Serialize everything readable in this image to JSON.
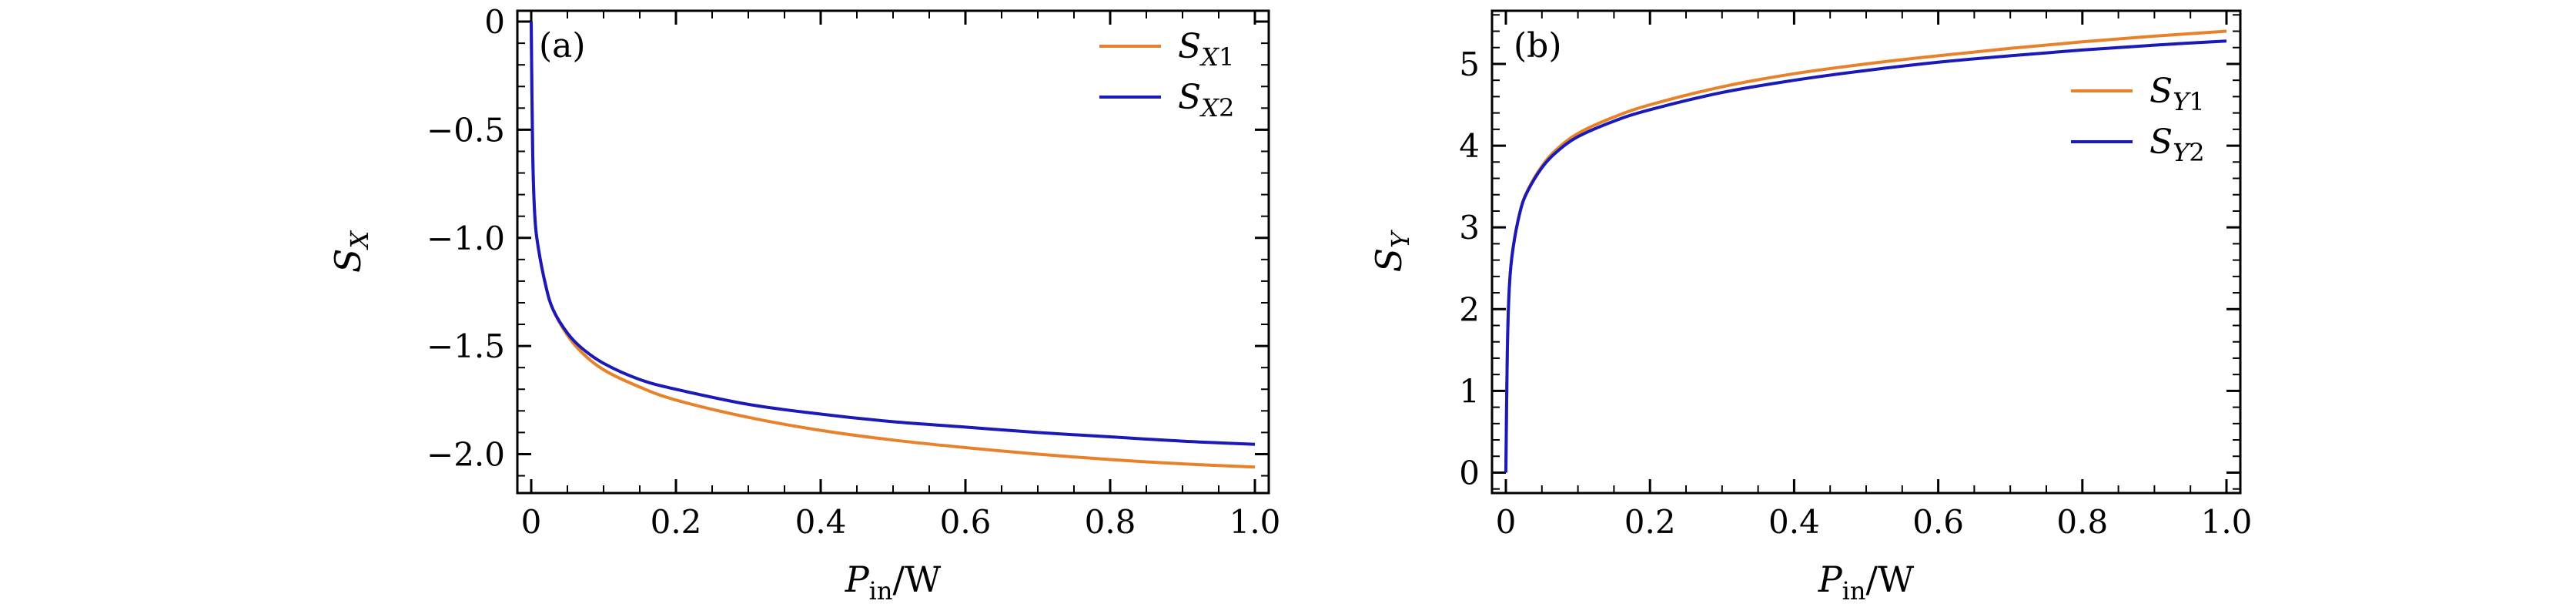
{
  "chart_data": [
    {
      "type": "line",
      "panel_label": "(a)",
      "xlabel": {
        "main": "P",
        "sub": "in",
        "unit": "/W"
      },
      "ylabel": {
        "main": "S",
        "sub": "X"
      },
      "xlim": [
        0,
        1.0
      ],
      "ylim": [
        -2.18,
        0.05
      ],
      "x_ticks": [
        0,
        0.2,
        0.4,
        0.6,
        0.8,
        1.0
      ],
      "x_tick_labels": [
        "0",
        "0.2",
        "0.4",
        "0.6",
        "0.8",
        "1.0"
      ],
      "y_ticks": [
        0,
        -0.5,
        -1.0,
        -1.5,
        -2.0
      ],
      "y_tick_labels": [
        "0",
        "−0.5",
        "−1.0",
        "−1.5",
        "−2.0"
      ],
      "legend_position": "top-right",
      "series": [
        {
          "name": "SX1",
          "label_main": "S",
          "label_sub": "X1",
          "color": "#e8822a",
          "x": [
            0,
            0.002,
            0.005,
            0.01,
            0.02,
            0.03,
            0.05,
            0.07,
            0.1,
            0.15,
            0.2,
            0.3,
            0.4,
            0.5,
            0.6,
            0.7,
            0.8,
            0.9,
            1.0
          ],
          "y": [
            0,
            -0.6,
            -0.9,
            -1.05,
            -1.22,
            -1.33,
            -1.45,
            -1.53,
            -1.61,
            -1.69,
            -1.75,
            -1.83,
            -1.89,
            -1.935,
            -1.97,
            -2.0,
            -2.025,
            -2.045,
            -2.06
          ]
        },
        {
          "name": "SX2",
          "label_main": "S",
          "label_sub": "X2",
          "color": "#1a1ab8",
          "x": [
            0,
            0.002,
            0.005,
            0.01,
            0.02,
            0.03,
            0.05,
            0.07,
            0.1,
            0.15,
            0.2,
            0.3,
            0.4,
            0.5,
            0.6,
            0.7,
            0.8,
            0.9,
            1.0
          ],
          "y": [
            0,
            -0.6,
            -0.9,
            -1.05,
            -1.22,
            -1.33,
            -1.44,
            -1.51,
            -1.58,
            -1.655,
            -1.7,
            -1.77,
            -1.815,
            -1.85,
            -1.875,
            -1.9,
            -1.92,
            -1.94,
            -1.955
          ]
        }
      ]
    },
    {
      "type": "line",
      "panel_label": "(b)",
      "xlabel": {
        "main": "P",
        "sub": "in",
        "unit": "/W"
      },
      "ylabel": {
        "main": "S",
        "sub": "Y"
      },
      "xlim": [
        0,
        1.0
      ],
      "ylim": [
        -0.25,
        5.65
      ],
      "x_ticks": [
        0,
        0.2,
        0.4,
        0.6,
        0.8,
        1.0
      ],
      "x_tick_labels": [
        "0",
        "0.2",
        "0.4",
        "0.6",
        "0.8",
        "1.0"
      ],
      "y_ticks": [
        0,
        1,
        2,
        3,
        4,
        5
      ],
      "y_tick_labels": [
        "0",
        "1",
        "2",
        "3",
        "4",
        "5"
      ],
      "legend_position": "upper-right",
      "series": [
        {
          "name": "SY1",
          "label_main": "S",
          "label_sub": "Y1",
          "color": "#e8822a",
          "x": [
            0,
            0.002,
            0.005,
            0.01,
            0.02,
            0.03,
            0.05,
            0.07,
            0.1,
            0.15,
            0.2,
            0.3,
            0.4,
            0.5,
            0.6,
            0.7,
            0.8,
            0.9,
            1.0
          ],
          "y": [
            0,
            1.5,
            2.3,
            2.75,
            3.2,
            3.45,
            3.75,
            3.95,
            4.15,
            4.35,
            4.5,
            4.72,
            4.88,
            5.0,
            5.1,
            5.19,
            5.27,
            5.34,
            5.4
          ]
        },
        {
          "name": "SY2",
          "label_main": "S",
          "label_sub": "Y2",
          "color": "#1a1ab8",
          "x": [
            0,
            0.002,
            0.005,
            0.01,
            0.02,
            0.03,
            0.05,
            0.07,
            0.1,
            0.15,
            0.2,
            0.3,
            0.4,
            0.5,
            0.6,
            0.7,
            0.8,
            0.9,
            1.0
          ],
          "y": [
            0,
            1.5,
            2.3,
            2.75,
            3.2,
            3.44,
            3.73,
            3.92,
            4.11,
            4.3,
            4.44,
            4.65,
            4.8,
            4.92,
            5.02,
            5.1,
            5.17,
            5.23,
            5.28
          ]
        }
      ]
    }
  ]
}
